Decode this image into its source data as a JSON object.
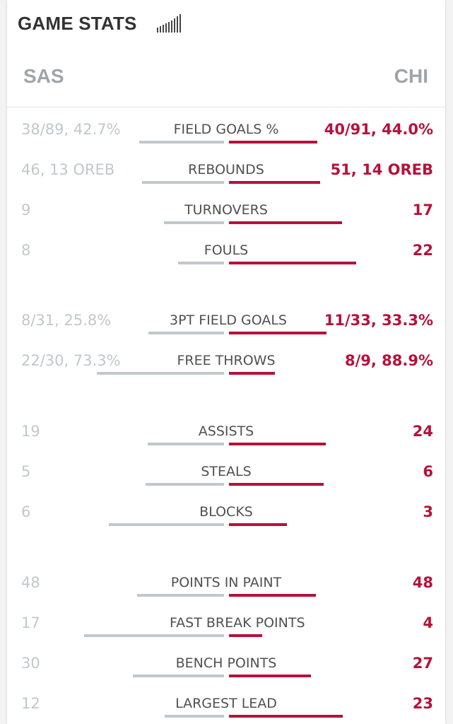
{
  "header": {
    "title": "GAME STATS"
  },
  "teams": {
    "away": "SAS",
    "home": "CHI"
  },
  "colors": {
    "away_bar": "#c1c8cd",
    "home_bar": "#b5123b",
    "home_text": "#b5123b"
  },
  "icons": {
    "header_icon": "signal-bars-icon"
  },
  "stats": [
    {
      "label": "FIELD GOALS %",
      "away": "38/89, 42.7%",
      "home": "40/91, 44.0%",
      "away_share": 0.49,
      "home_share": 0.51
    },
    {
      "label": "REBOUNDS",
      "away": "46, 13 OREB",
      "home": "51, 14 OREB",
      "away_share": 0.474,
      "home_share": 0.526
    },
    {
      "label": "TURNOVERS",
      "away": "9",
      "home": "17",
      "away_share": 0.346,
      "home_share": 0.654
    },
    {
      "label": "FOULS",
      "away": "8",
      "home": "22",
      "away_share": 0.267,
      "home_share": 0.733
    },
    {
      "label": "3PT FIELD GOALS",
      "away": "8/31, 25.8%",
      "home": "11/33, 33.3%",
      "away_share": 0.437,
      "home_share": 0.563
    },
    {
      "label": "FREE THROWS",
      "away": "22/30, 73.3%",
      "home": "8/9, 88.9%",
      "away_share": 0.733,
      "home_share": 0.267
    },
    {
      "label": "ASSISTS",
      "away": "19",
      "home": "24",
      "away_share": 0.442,
      "home_share": 0.558
    },
    {
      "label": "STEALS",
      "away": "5",
      "home": "6",
      "away_share": 0.455,
      "home_share": 0.545
    },
    {
      "label": "BLOCKS",
      "away": "6",
      "home": "3",
      "away_share": 0.667,
      "home_share": 0.333
    },
    {
      "label": "POINTS IN PAINT",
      "away": "48",
      "home": "48",
      "away_share": 0.5,
      "home_share": 0.5
    },
    {
      "label": "FAST BREAK POINTS",
      "away": "17",
      "home": "4",
      "away_share": 0.81,
      "home_share": 0.19
    },
    {
      "label": "BENCH POINTS",
      "away": "30",
      "home": "27",
      "away_share": 0.526,
      "home_share": 0.474
    },
    {
      "label": "LARGEST LEAD",
      "away": "12",
      "home": "23",
      "away_share": 0.343,
      "home_share": 0.657
    }
  ]
}
